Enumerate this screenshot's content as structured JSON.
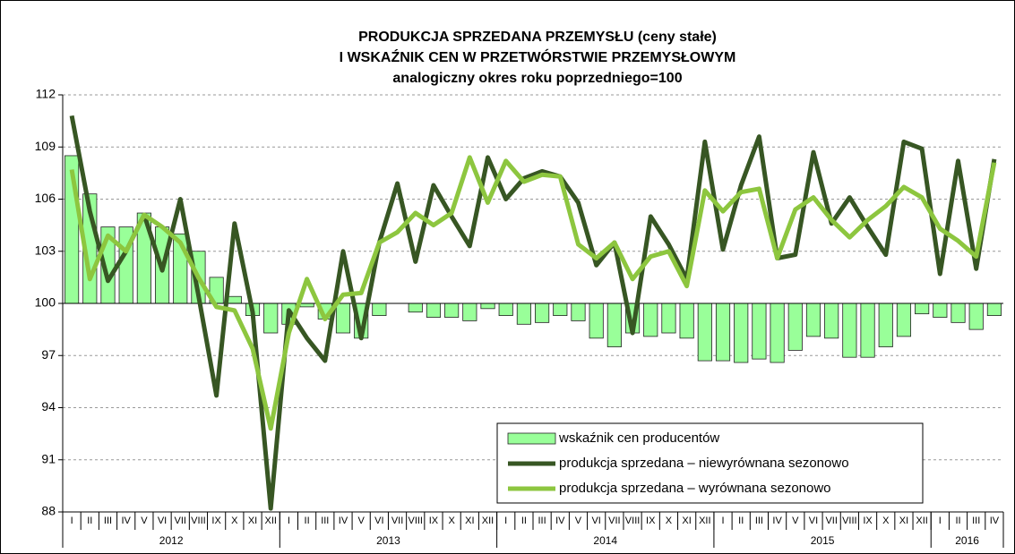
{
  "chart_data": {
    "type": "combo",
    "title": [
      "PRODUKCJA SPRZEDANA PRZEMYSŁU (ceny stałe)",
      "I WSKAŹNIK CEN W PRZETWÓRSTWIE PRZEMYSŁOWYM",
      "analogiczny okres roku poprzedniego=100"
    ],
    "categories": [
      "I",
      "II",
      "III",
      "IV",
      "V",
      "VI",
      "VII",
      "VIII",
      "IX",
      "X",
      "XI",
      "XII",
      "I",
      "II",
      "III",
      "IV",
      "V",
      "VI",
      "VII",
      "VIII",
      "IX",
      "X",
      "XI",
      "XII",
      "I",
      "II",
      "III",
      "IV",
      "V",
      "VI",
      "VII",
      "VIII",
      "IX",
      "X",
      "XI",
      "XII",
      "I",
      "II",
      "III",
      "IV",
      "V",
      "VI",
      "VII",
      "VIII",
      "IX",
      "X",
      "XI",
      "XII",
      "I",
      "II",
      "III",
      "IV"
    ],
    "years": [
      "2012",
      "2013",
      "2014",
      "2015",
      "2016"
    ],
    "bar_base": 100,
    "ylim": [
      88,
      112
    ],
    "yticks": [
      88,
      91,
      94,
      97,
      100,
      103,
      106,
      109,
      112
    ],
    "grid": true,
    "legend": "lower right",
    "series": [
      {
        "name": "wskaźnik cen producentów",
        "type": "bar",
        "color": "#99ff99",
        "values": [
          108.5,
          106.3,
          104.4,
          104.4,
          105.2,
          104.4,
          104.0,
          103.0,
          101.5,
          100.4,
          99.3,
          98.3,
          98.8,
          99.8,
          99.1,
          98.3,
          98.0,
          99.3,
          100.0,
          99.5,
          99.2,
          99.2,
          99.0,
          99.7,
          99.3,
          98.8,
          98.9,
          99.3,
          99.0,
          98.0,
          97.5,
          98.3,
          98.1,
          98.3,
          98.0,
          96.7,
          96.7,
          96.6,
          96.8,
          96.6,
          97.3,
          98.1,
          98.0,
          96.9,
          96.9,
          97.5,
          98.1,
          99.4,
          99.2,
          98.9,
          98.5,
          99.3
        ]
      },
      {
        "name": "produkcja sprzedana – niewyrównana sezonowo",
        "type": "line",
        "color": "#375623",
        "values": [
          110.8,
          105.3,
          101.3,
          103.0,
          105.1,
          101.9,
          106.0,
          100.5,
          94.7,
          104.6,
          99.5,
          88.2,
          99.6,
          98.0,
          96.7,
          103.0,
          98.0,
          103.5,
          106.9,
          102.4,
          106.8,
          105.0,
          103.3,
          108.4,
          106.0,
          107.2,
          107.6,
          107.3,
          105.8,
          102.2,
          103.5,
          98.3,
          105.0,
          103.4,
          101.4,
          109.3,
          103.1,
          106.8,
          109.6,
          102.6,
          102.8,
          108.7,
          104.6,
          106.1,
          104.4,
          102.8,
          109.3,
          108.9,
          101.7,
          108.2,
          102.0,
          108.3
        ]
      },
      {
        "name": "produkcja sprzedana – wyrównana sezonowo",
        "type": "line",
        "color": "#8dc63f",
        "values": [
          107.7,
          101.4,
          103.9,
          103.0,
          105.1,
          104.4,
          103.5,
          101.5,
          99.8,
          99.6,
          97.4,
          92.8,
          98.3,
          101.4,
          99.1,
          100.5,
          100.6,
          103.5,
          104.1,
          105.2,
          104.5,
          105.2,
          108.4,
          105.8,
          108.2,
          107.0,
          107.4,
          107.3,
          103.4,
          102.6,
          103.5,
          101.4,
          102.7,
          103.0,
          101.0,
          106.5,
          105.3,
          106.4,
          106.6,
          102.6,
          105.4,
          106.1,
          104.8,
          103.8,
          104.8,
          105.6,
          106.7,
          106.1,
          104.3,
          103.6,
          102.7,
          108.1
        ]
      }
    ]
  }
}
